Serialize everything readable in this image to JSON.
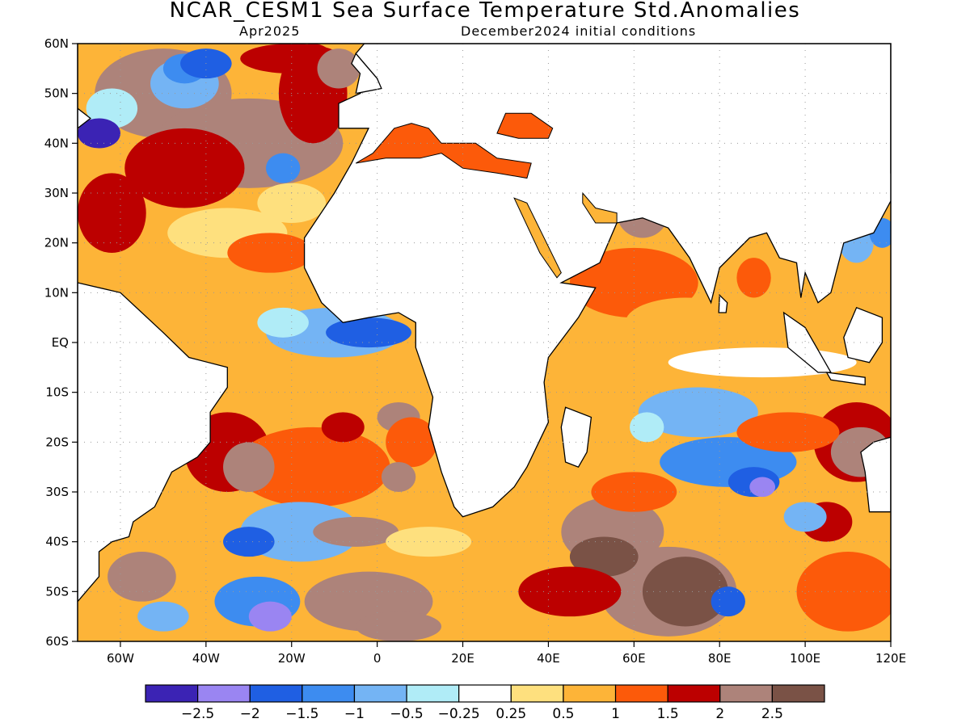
{
  "header": {
    "title": "NCAR_CESM1 Sea Surface Temperature Std.Anomalies",
    "valid_month": "Apr2025",
    "init": "December2024 initial conditions"
  },
  "map": {
    "lon_range": [
      -70,
      120
    ],
    "lat_range": [
      -60,
      60
    ],
    "lat_labels": [
      "60N",
      "50N",
      "40N",
      "30N",
      "20N",
      "10N",
      "EQ",
      "10S",
      "20S",
      "30S",
      "40S",
      "50S",
      "60S"
    ],
    "lat_values": [
      60,
      50,
      40,
      30,
      20,
      10,
      0,
      -10,
      -20,
      -30,
      -40,
      -50,
      -60
    ],
    "lon_labels": [
      "60W",
      "40W",
      "20W",
      "0",
      "20E",
      "40E",
      "60E",
      "80E",
      "100E",
      "120E"
    ],
    "lon_values": [
      -60,
      -40,
      -20,
      0,
      20,
      40,
      60,
      80,
      100,
      120
    ],
    "grid": "dotted",
    "colors": {
      "land": "#ffffff",
      "coast": "#000000",
      "grid": "#999999"
    }
  },
  "colorbar": {
    "colors": [
      "#3b23b4",
      "#9a85f2",
      "#1f5fe3",
      "#3d8cf0",
      "#74b4f4",
      "#b0ecf7",
      "#ffffff",
      "#fee07e",
      "#fdb438",
      "#fc5a0a",
      "#bc0000",
      "#ad837a",
      "#7a5246"
    ],
    "labels": [
      "-2.5",
      "-2",
      "-1.5",
      "-1",
      "-0.5",
      "-0.25",
      "0.25",
      "0.5",
      "1",
      "1.5",
      "2",
      "2.5"
    ]
  }
}
